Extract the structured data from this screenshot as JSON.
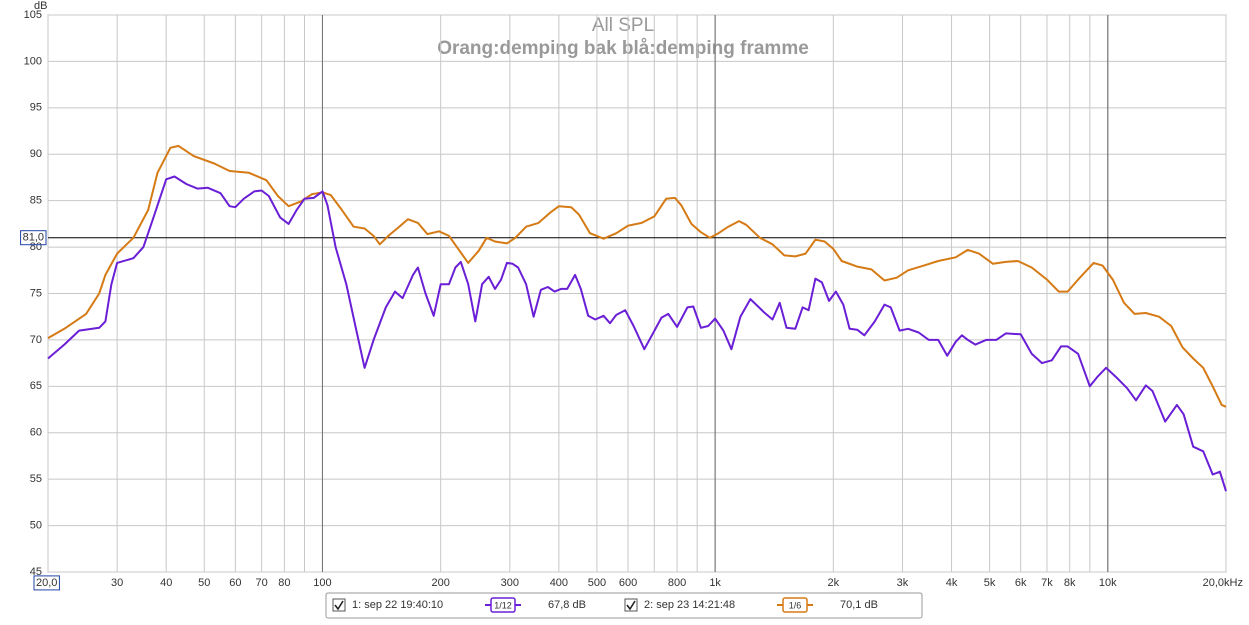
{
  "chart_data": {
    "type": "line",
    "title": "All SPL",
    "subtitle": "Orang:demping bak blå:demping framme",
    "y_label": "dB",
    "x_log": true,
    "grid": true,
    "xlim": [
      20,
      20000
    ],
    "ylim": [
      45,
      105
    ],
    "yticks": [
      45,
      50,
      55,
      60,
      65,
      70,
      75,
      80,
      85,
      90,
      95,
      100,
      105
    ],
    "xticks": [
      {
        "value": 20,
        "label": "20,0"
      },
      30,
      40,
      50,
      60,
      70,
      80,
      100,
      200,
      300,
      400,
      500,
      600,
      800,
      {
        "value": 1000,
        "label": "1k"
      },
      {
        "value": 2000,
        "label": "2k"
      },
      {
        "value": 3000,
        "label": "3k"
      },
      {
        "value": 4000,
        "label": "4k"
      },
      {
        "value": 5000,
        "label": "5k"
      },
      {
        "value": 6000,
        "label": "6k"
      },
      {
        "value": 7000,
        "label": "7k"
      },
      {
        "value": 8000,
        "label": "8k"
      },
      {
        "value": 10000,
        "label": "10k"
      },
      {
        "value": 20000,
        "label": "20,0kHz"
      }
    ],
    "x_minor_grid": [
      90,
      700,
      900,
      9000
    ],
    "x_major_grid": [
      100,
      1000,
      10000
    ],
    "cursor": {
      "value": 81,
      "label": "81,0"
    },
    "series": [
      {
        "name": "1: sep 22 19:40:10",
        "color": "#6a1fd6",
        "smoothing": "1/12",
        "level": "67,8 dB",
        "x": [
          20,
          22,
          24,
          27,
          28,
          29,
          30,
          33,
          35,
          37,
          40,
          42,
          45,
          48,
          51,
          55,
          58,
          60,
          63,
          67,
          70,
          73,
          78,
          82,
          86,
          90,
          95,
          100,
          103,
          108,
          115,
          122,
          128,
          135,
          145,
          153,
          160,
          170,
          175,
          183,
          192,
          200,
          210,
          218,
          225,
          235,
          245,
          255,
          265,
          275,
          285,
          295,
          305,
          315,
          330,
          345,
          360,
          375,
          390,
          405,
          420,
          440,
          455,
          475,
          495,
          520,
          540,
          560,
          590,
          620,
          660,
          690,
          730,
          760,
          800,
          850,
          880,
          920,
          960,
          1000,
          1050,
          1100,
          1160,
          1230,
          1280,
          1330,
          1400,
          1460,
          1520,
          1600,
          1670,
          1730,
          1800,
          1870,
          1950,
          2030,
          2120,
          2200,
          2300,
          2400,
          2550,
          2700,
          2800,
          2950,
          3100,
          3300,
          3500,
          3700,
          3900,
          4100,
          4250,
          4400,
          4600,
          4900,
          5200,
          5500,
          6000,
          6400,
          6800,
          7200,
          7600,
          7900,
          8400,
          9000,
          9400,
          9900,
          10500,
          11200,
          11800,
          12500,
          13000,
          14000,
          15000,
          15600,
          16500,
          17500,
          18500,
          19300,
          20000
        ],
        "values": [
          68,
          69.5,
          71,
          71.3,
          72,
          76,
          78.3,
          78.8,
          80,
          83,
          87.3,
          87.6,
          86.8,
          86.3,
          86.4,
          85.8,
          84.4,
          84.3,
          85.2,
          86,
          86.1,
          85.5,
          83.2,
          82.5,
          84,
          85.2,
          85.3,
          86,
          84.5,
          80,
          76,
          71,
          67,
          70,
          73.5,
          75.2,
          74.5,
          77,
          77.8,
          75,
          72.6,
          76,
          76,
          77.8,
          78.4,
          76,
          72,
          76,
          76.8,
          75.5,
          76.5,
          78.3,
          78.2,
          77.8,
          76,
          72.5,
          75.4,
          75.7,
          75.2,
          75.5,
          75.5,
          77,
          75.5,
          72.6,
          72.2,
          72.6,
          71.8,
          72.7,
          73.2,
          71.5,
          69,
          70.5,
          72.4,
          72.8,
          71.4,
          73.5,
          73.6,
          71.3,
          71.5,
          72.3,
          71,
          69,
          72.5,
          74.4,
          73.7,
          73,
          72.2,
          74,
          71.3,
          71.2,
          73.5,
          73.2,
          76.6,
          76.2,
          74.2,
          75.2,
          73.8,
          71.2,
          71.1,
          70.5,
          72,
          73.8,
          73.5,
          71,
          71.2,
          70.8,
          70,
          70,
          68.3,
          69.8,
          70.5,
          70,
          69.5,
          70,
          70,
          70.7,
          70.6,
          68.5,
          67.5,
          67.8,
          69.3,
          69.3,
          68.5,
          65,
          66,
          67,
          66,
          64.8,
          63.5,
          65.1,
          64.5,
          61.2,
          63,
          62,
          58.5,
          58,
          55.5,
          55.8,
          53.7
        ]
      },
      {
        "name": "2: sep 23 14:21:48",
        "color": "#d57a14",
        "smoothing": "1/6",
        "level": "70,1 dB",
        "x": [
          20,
          22,
          25,
          27,
          28,
          30,
          33,
          36,
          38,
          41,
          43,
          47,
          53,
          58,
          65,
          72,
          77,
          82,
          88,
          94,
          100,
          105,
          112,
          120,
          128,
          135,
          140,
          148,
          155,
          165,
          175,
          185,
          198,
          210,
          220,
          235,
          250,
          262,
          275,
          295,
          310,
          330,
          355,
          380,
          400,
          430,
          450,
          480,
          520,
          560,
          600,
          650,
          700,
          750,
          790,
          820,
          870,
          920,
          970,
          1020,
          1080,
          1150,
          1200,
          1300,
          1400,
          1500,
          1600,
          1700,
          1800,
          1900,
          2000,
          2100,
          2300,
          2500,
          2700,
          2900,
          3100,
          3400,
          3700,
          4100,
          4400,
          4700,
          5100,
          5500,
          5900,
          6400,
          7000,
          7500,
          7900,
          8400,
          9200,
          9700,
          10300,
          11000,
          11700,
          12500,
          13500,
          14500,
          15500,
          16500,
          17500,
          18500,
          19500,
          20000
        ],
        "values": [
          70.2,
          71.2,
          72.8,
          75,
          77,
          79.3,
          81,
          84,
          88,
          90.7,
          90.9,
          89.8,
          89,
          88.2,
          88,
          87.2,
          85.5,
          84.4,
          84.9,
          85.7,
          85.9,
          85.6,
          84,
          82.2,
          82,
          81.2,
          80.3,
          81.3,
          82,
          83,
          82.6,
          81.4,
          81.7,
          81.2,
          80,
          78.3,
          79.6,
          81,
          80.6,
          80.4,
          81,
          82.2,
          82.6,
          83.7,
          84.4,
          84.3,
          83.5,
          81.5,
          80.9,
          81.5,
          82.3,
          82.6,
          83.3,
          85.2,
          85.3,
          84.5,
          82.5,
          81.6,
          81,
          81.5,
          82.2,
          82.8,
          82.4,
          81,
          80.3,
          79.1,
          79,
          79.3,
          80.8,
          80.6,
          79.8,
          78.5,
          77.9,
          77.6,
          76.4,
          76.7,
          77.5,
          78,
          78.5,
          78.9,
          79.7,
          79.3,
          78.2,
          78.4,
          78.5,
          77.8,
          76.5,
          75.2,
          75.2,
          76.5,
          78.3,
          78,
          76.5,
          74,
          72.8,
          72.9,
          72.5,
          71.5,
          69.2,
          68,
          67,
          65,
          63,
          62.8
        ]
      }
    ]
  }
}
